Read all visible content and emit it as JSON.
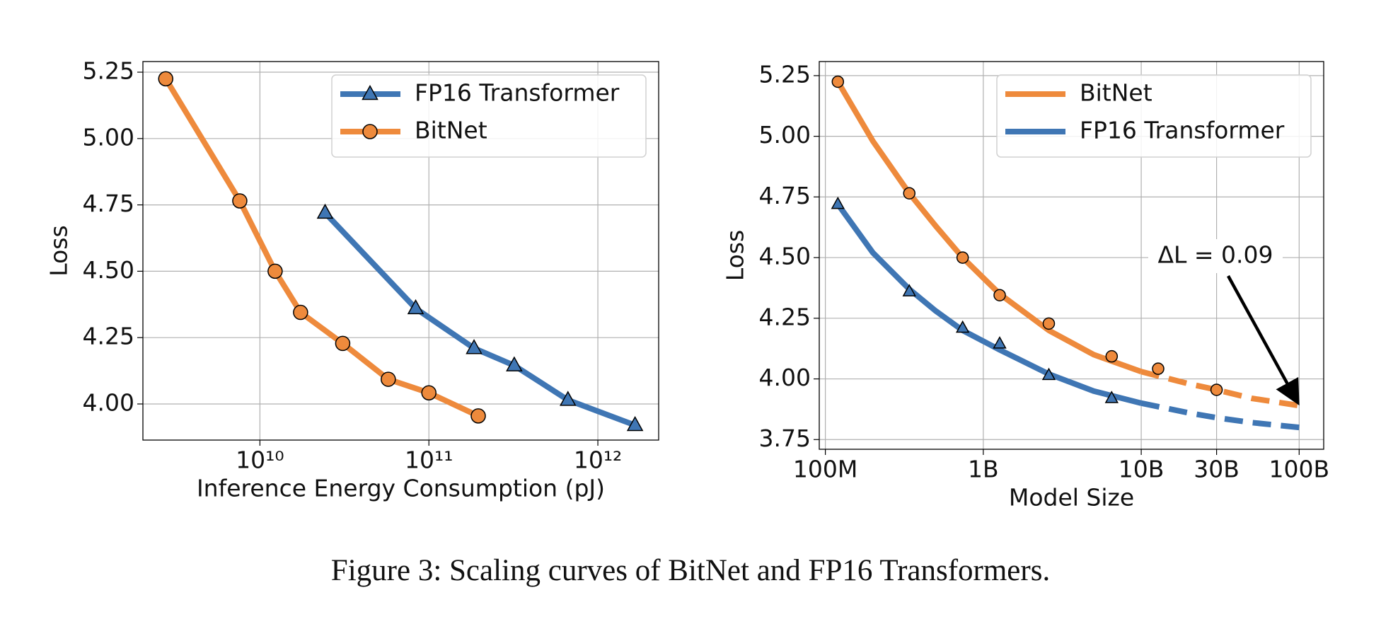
{
  "chart_data": [
    {
      "type": "line",
      "xlabel": "Inference Energy Consumption (pJ)",
      "ylabel": "Loss",
      "xscale": "log",
      "xlim": [
        2030000000.0,
        2290000000000.0
      ],
      "ylim": [
        3.864,
        5.29
      ],
      "xticks": [
        {
          "value": 10000000000.0,
          "label": "10¹⁰"
        },
        {
          "value": 100000000000.0,
          "label": "10¹¹"
        },
        {
          "value": 1000000000000.0,
          "label": "10¹²"
        }
      ],
      "yticks": [
        {
          "value": 4,
          "label": "4.00"
        },
        4.25,
        {
          "value": 4.5,
          "label": "4.50"
        },
        4.75,
        {
          "value": 5,
          "label": "5.00"
        },
        5.25
      ],
      "grid": true,
      "legend": "upper right",
      "legend_markers": true,
      "series": [
        {
          "name": "FP16 Transformer",
          "color": "#3f76b4",
          "marker": "triangle",
          "x": [
            24300000000.0,
            83500000000.0,
            185000000000.0,
            320000000000.0,
            665000000000.0,
            1660000000000.0
          ],
          "values": [
            4.72,
            4.36,
            4.21,
            4.145,
            4.015,
            3.92
          ]
        },
        {
          "name": "BitNet",
          "color": "#ee8a3c",
          "marker": "circle",
          "x": [
            2770000000.0,
            7600000000.0,
            12300000000.0,
            17400000000.0,
            30900000000.0,
            57500000000.0,
            100000000000.0,
            196000000000.0
          ],
          "values": [
            5.225,
            4.765,
            4.5,
            4.345,
            4.228,
            4.093,
            4.042,
            3.955
          ]
        }
      ]
    },
    {
      "type": "curve-fit",
      "xlabel": "Model Size",
      "ylabel": "Loss",
      "xscale": "log",
      "xlim": [
        91500000.0,
        143000000000.0
      ],
      "ylim": [
        3.71,
        5.308
      ],
      "xticks": [
        {
          "value": 100000000.0,
          "label": "100M"
        },
        {
          "value": 1000000000.0,
          "label": "1B"
        },
        {
          "value": 10000000000.0,
          "label": "10B"
        },
        {
          "value": 30000000000.0,
          "label": "30B"
        },
        {
          "value": 100000000000.0,
          "label": "100B"
        }
      ],
      "yticks": [
        3.75,
        {
          "value": 4,
          "label": "4.00"
        },
        4.25,
        {
          "value": 4.5,
          "label": "4.50"
        },
        4.75,
        {
          "value": 5,
          "label": "5.00"
        },
        5.25
      ],
      "grid": true,
      "legend": "upper right",
      "legend_markers": false,
      "dashed_from": 10000000000.0,
      "annotation": {
        "text": "ΔL = 0.09",
        "xy": [
          100000000000.0,
          3.89
        ]
      },
      "series": [
        {
          "name": "BitNet",
          "color": "#ee8a3c",
          "marker": "circle",
          "x": [
            120000000.0,
            340000000.0,
            740000000.0,
            1270000000.0,
            2600000000.0,
            6500000000.0,
            12800000000.0,
            30000000000.0
          ],
          "values": [
            5.225,
            4.765,
            4.5,
            4.345,
            4.228,
            4.093,
            4.042,
            3.955
          ],
          "curve": {
            "x": [
              120000000.0,
              200000000.0,
              340000000.0,
              500000000.0,
              740000000.0,
              1270000000.0,
              2600000000.0,
              5000000000.0,
              10000000000.0,
              20000000000.0,
              30000000000.0,
              50000000000.0,
              100000000000.0
            ],
            "values": [
              5.225,
              4.98,
              4.765,
              4.63,
              4.5,
              4.35,
              4.2,
              4.1,
              4.03,
              3.98,
              3.955,
              3.92,
              3.89
            ]
          }
        },
        {
          "name": "FP16 Transformer",
          "color": "#3f76b4",
          "marker": "triangle",
          "x": [
            120000000.0,
            340000000.0,
            740000000.0,
            1270000000.0,
            2600000000.0,
            6500000000.0
          ],
          "values": [
            4.72,
            4.36,
            4.21,
            4.145,
            4.015,
            3.92
          ],
          "curve": {
            "x": [
              120000000.0,
              200000000.0,
              340000000.0,
              500000000.0,
              740000000.0,
              1270000000.0,
              2600000000.0,
              5000000000.0,
              10000000000.0,
              20000000000.0,
              30000000000.0,
              50000000000.0,
              100000000000.0
            ],
            "values": [
              4.72,
              4.52,
              4.37,
              4.28,
              4.2,
              4.12,
              4.02,
              3.95,
              3.9,
              3.86,
              3.84,
              3.82,
              3.8
            ]
          }
        }
      ]
    }
  ],
  "caption": "Figure 3: Scaling curves of BitNet and FP16 Transformers."
}
